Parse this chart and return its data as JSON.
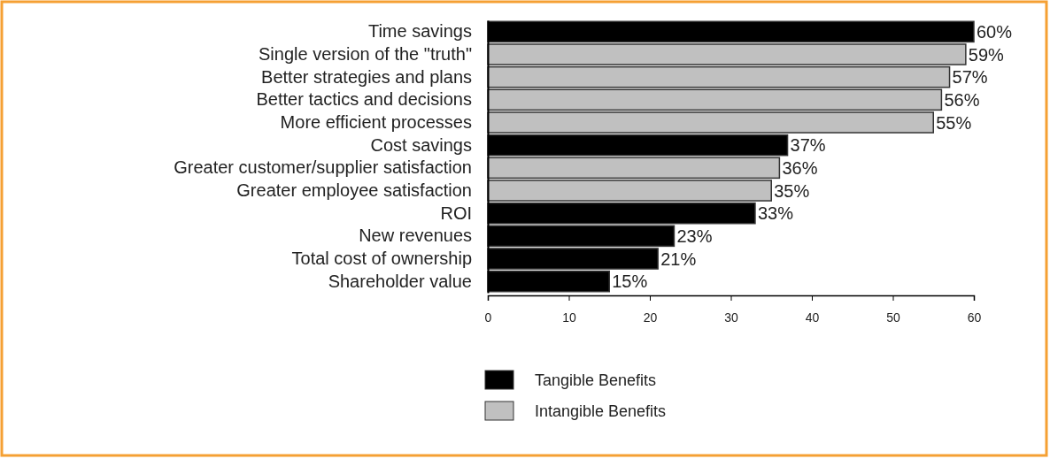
{
  "chart_data": {
    "type": "bar",
    "orientation": "horizontal",
    "categories": [
      "Time savings",
      "Single version of the \"truth\"",
      "Better strategies and plans",
      "Better tactics and decisions",
      "More efficient processes",
      "Cost savings",
      "Greater customer/supplier satisfaction",
      "Greater employee satisfaction",
      "ROI",
      "New revenues",
      "Total cost of ownership",
      "Shareholder value"
    ],
    "series": [
      {
        "name": "Tangible Benefits",
        "color": "#000000",
        "values": [
          60,
          null,
          null,
          null,
          null,
          37,
          null,
          null,
          33,
          23,
          21,
          15
        ],
        "value_labels": [
          "60%",
          null,
          null,
          null,
          null,
          "37%",
          null,
          null,
          "33%",
          "23%",
          "21%",
          "15%"
        ]
      },
      {
        "name": "Intangible Benefits",
        "color": "#c0c0c0",
        "values": [
          null,
          59,
          57,
          56,
          55,
          null,
          36,
          35,
          null,
          null,
          null,
          null
        ],
        "value_labels": [
          null,
          "59%",
          "57%",
          "56%",
          "55%",
          null,
          "36%",
          "35%",
          null,
          null,
          null,
          null
        ]
      }
    ],
    "xlim": [
      0,
      60
    ],
    "xticks": [
      0,
      10,
      20,
      30,
      40,
      50,
      60
    ],
    "legend": "bottom left",
    "grid": false
  }
}
